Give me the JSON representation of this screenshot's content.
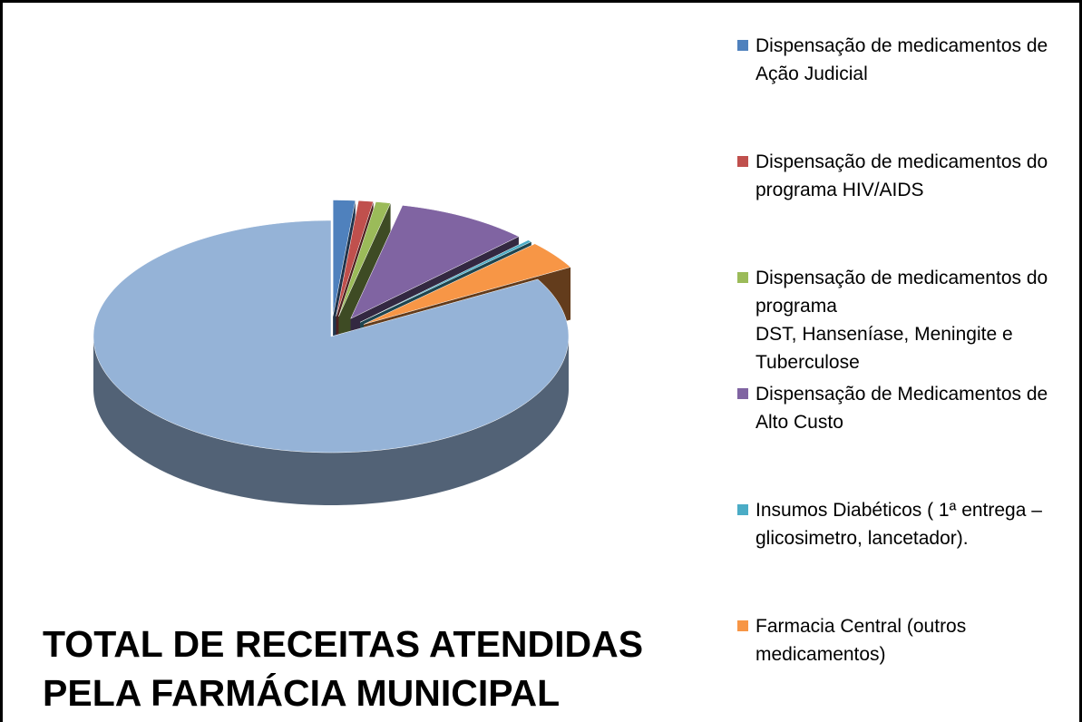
{
  "chart_data": {
    "type": "pie",
    "title": "TOTAL DE RECEITAS ATENDIDAS PELA FARMÁCIA MUNICIPAL",
    "categories": [
      "Dispensação de medicamentos de Ação Judicial",
      "Dispensação de medicamentos do programa HIV/AIDS",
      "Dispensação de medicamentos do programa\nDST, Hanseníase, Meningite e Tuberculose",
      "Dispensação de Medicamentos de Alto Custo",
      "Insumos Diabéticos ( 1ª entrega – glicosimetro, lancetador).",
      "Farmacia Central (outros medicamentos)",
      null
    ],
    "values": [
      1.5,
      1,
      1,
      9,
      0.3,
      4,
      83.2
    ],
    "colors": [
      "#4f81bd",
      "#c0504d",
      "#9bbb59",
      "#8064a2",
      "#4bacc6",
      "#f79646",
      "#95b3d7"
    ],
    "legend": "right"
  }
}
